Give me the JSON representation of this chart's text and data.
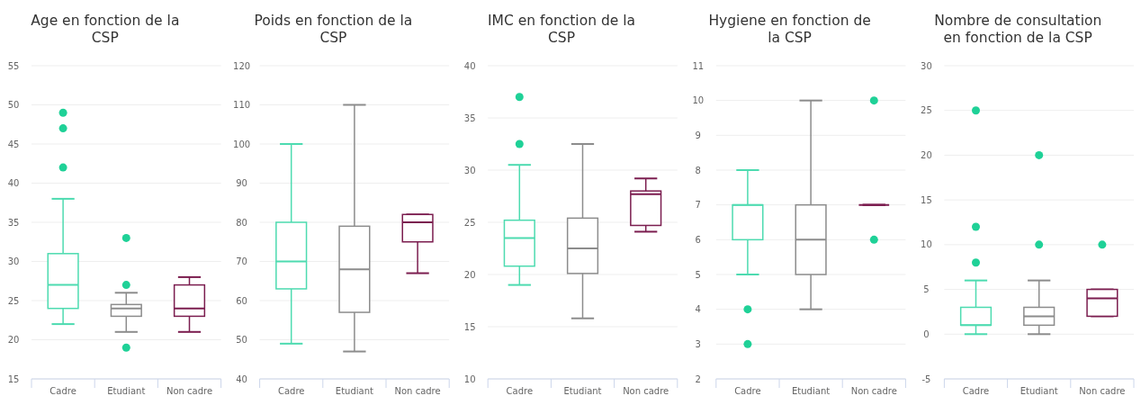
{
  "chart_data": [
    {
      "type": "box",
      "title": "Age en fonction de la CSP",
      "categories": [
        "Cadre",
        "Etudiant",
        "Non cadre"
      ],
      "colors": [
        "#4ddbb0",
        "#8c8c8c",
        "#7b1d4f"
      ],
      "ylim": [
        15,
        55
      ],
      "yticks": [
        15,
        20,
        25,
        30,
        35,
        40,
        45,
        50,
        55
      ],
      "grid": "y",
      "boxes": [
        {
          "low": 22,
          "q1": 24,
          "median": 27,
          "q3": 31,
          "high": 38,
          "outliers": [
            42,
            47,
            49
          ]
        },
        {
          "low": 21,
          "q1": 23,
          "median": 24,
          "q3": 24.5,
          "high": 26,
          "outliers": [
            19,
            27,
            33
          ]
        },
        {
          "low": 21,
          "q1": 23,
          "median": 24,
          "q3": 27,
          "high": 28
        }
      ]
    },
    {
      "type": "box",
      "title": "Poids en fonction de la CSP",
      "categories": [
        "Cadre",
        "Etudiant",
        "Non cadre"
      ],
      "colors": [
        "#4ddbb0",
        "#8c8c8c",
        "#7b1d4f"
      ],
      "ylim": [
        40,
        120
      ],
      "yticks": [
        40,
        50,
        60,
        70,
        80,
        90,
        100,
        110,
        120
      ],
      "grid": "y",
      "boxes": [
        {
          "low": 49,
          "q1": 63,
          "median": 70,
          "q3": 80,
          "high": 100
        },
        {
          "low": 47,
          "q1": 57,
          "median": 68,
          "q3": 79,
          "high": 110
        },
        {
          "low": 67,
          "q1": 75,
          "median": 80,
          "q3": 82,
          "high": 82
        }
      ]
    },
    {
      "type": "box",
      "title": "IMC en fonction de la CSP",
      "categories": [
        "Cadre",
        "Etudiant",
        "Non cadre"
      ],
      "colors": [
        "#4ddbb0",
        "#8c8c8c",
        "#7b1d4f"
      ],
      "ylim": [
        10,
        40
      ],
      "yticks": [
        10,
        15,
        20,
        25,
        30,
        35,
        40
      ],
      "grid": "y",
      "boxes": [
        {
          "low": 19,
          "q1": 20.8,
          "median": 23.5,
          "q3": 25.2,
          "high": 30.5,
          "outliers": [
            32.5,
            37
          ]
        },
        {
          "low": 15.8,
          "q1": 20.1,
          "median": 22.5,
          "q3": 25.4,
          "high": 32.5
        },
        {
          "low": 24.1,
          "q1": 24.7,
          "median": 27.7,
          "q3": 28,
          "high": 29.2
        }
      ]
    },
    {
      "type": "box",
      "title": "Hygiene en fonction de la CSP",
      "categories": [
        "Cadre",
        "Etudiant",
        "Non cadre"
      ],
      "colors": [
        "#4ddbb0",
        "#8c8c8c",
        "#7b1d4f"
      ],
      "ylim": [
        2,
        11
      ],
      "yticks": [
        2,
        3,
        4,
        5,
        6,
        7,
        8,
        9,
        10,
        11
      ],
      "grid": "y",
      "boxes": [
        {
          "low": 5,
          "q1": 6,
          "median": 7,
          "q3": 7,
          "high": 8,
          "outliers": [
            3,
            4
          ]
        },
        {
          "low": 4,
          "q1": 5,
          "median": 6,
          "q3": 7,
          "high": 10
        },
        {
          "low": 7,
          "q1": 7,
          "median": 7,
          "q3": 7,
          "high": 7,
          "outliers": [
            6,
            10
          ]
        }
      ]
    },
    {
      "type": "box",
      "title": "Nombre de consultation en fonction de la CSP",
      "categories": [
        "Cadre",
        "Etudiant",
        "Non cadre"
      ],
      "colors": [
        "#4ddbb0",
        "#8c8c8c",
        "#7b1d4f"
      ],
      "ylim": [
        -5,
        30
      ],
      "yticks": [
        -5,
        0,
        5,
        10,
        15,
        20,
        25,
        30
      ],
      "grid": "y",
      "boxes": [
        {
          "low": 0,
          "q1": 1,
          "median": 1,
          "q3": 3,
          "high": 6,
          "outliers": [
            8,
            12,
            25
          ]
        },
        {
          "low": 0,
          "q1": 1,
          "median": 2,
          "q3": 3,
          "high": 6,
          "outliers": [
            10,
            20
          ]
        },
        {
          "low": 2,
          "q1": 2,
          "median": 4,
          "q3": 5,
          "high": 5,
          "outliers": [
            10
          ]
        }
      ]
    }
  ]
}
